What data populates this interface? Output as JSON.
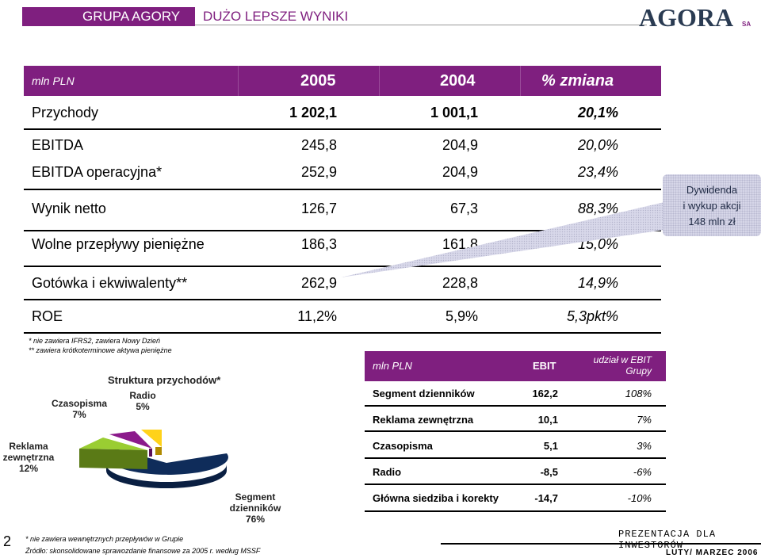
{
  "header": {
    "group": "GRUPA AGORY",
    "subtitle": "DUŻO LEPSZE WYNIKI",
    "logo_text": "AGORA",
    "logo_suffix": "SA"
  },
  "main_table": {
    "unit": "mln PLN",
    "col_2005": "2005",
    "col_2004": "2004",
    "col_change": "% zmiana",
    "rows": [
      {
        "label": "Przychody",
        "v2005": "1 202,1",
        "v2004": "1 001,1",
        "change": "20,1%",
        "bold": true
      },
      {
        "label": "EBITDA",
        "v2005": "245,8",
        "v2004": "204,9",
        "change": "20,0%"
      },
      {
        "label": "EBITDA operacyjna*",
        "v2005": "252,9",
        "v2004": "204,9",
        "change": "23,4%"
      },
      {
        "label": "Wynik netto",
        "v2005": "126,7",
        "v2004": "67,3",
        "change": "88,3%"
      },
      {
        "label": "Wolne przepływy pieniężne",
        "v2005": "186,3",
        "v2004": "161,8",
        "change": "15,0%"
      },
      {
        "label": "Gotówka i ekwiwalenty**",
        "v2005": "262,9",
        "v2004": "228,8",
        "change": "14,9%"
      },
      {
        "label": "ROE",
        "v2005": "11,2%",
        "v2004": "5,9%",
        "change": "5,3pkt%"
      }
    ]
  },
  "callout": {
    "line1": "Dywidenda",
    "line2": "i wykup akcji",
    "line3": "148 mln zł"
  },
  "footnotes_top": {
    "f1": "* nie zawiera IFRS2, zawiera Nowy Dzień",
    "f2": "** zawiera krótkoterminowe aktywa pieniężne"
  },
  "pie": {
    "title": "Struktura przychodów*",
    "segments": [
      {
        "label": "Segment dzienników",
        "value": "76%",
        "color": "#0f2c5a"
      },
      {
        "label": "Reklama zewnętrzna",
        "value": "12%",
        "color": "#9acd32"
      },
      {
        "label": "Czasopisma",
        "value": "7%",
        "color": "#8b1a8b"
      },
      {
        "label": "Radio",
        "value": "5%",
        "color": "#ffd21a"
      }
    ]
  },
  "ebit_table": {
    "unit": "mln PLN",
    "col_ebit": "EBIT",
    "col_share_line1": "udział w EBIT",
    "col_share_line2": "Grupy",
    "rows": [
      {
        "label": "Segment dzienników",
        "ebit": "162,2",
        "share": "108%"
      },
      {
        "label": "Reklama zewnętrzna",
        "ebit": "10,1",
        "share": "7%"
      },
      {
        "label": "Czasopisma",
        "ebit": "5,1",
        "share": "3%"
      },
      {
        "label": "Radio",
        "ebit": "-8,5",
        "share": "-6%"
      },
      {
        "label": "Główna siedziba i korekty",
        "ebit": "-14,7",
        "share": "-10%"
      }
    ]
  },
  "footnotes_bottom": {
    "f1": "* nie zawiera wewnętrznych przepływów w Grupie",
    "f2": "Źródło: skonsolidowane sprawozdanie finansowe za 2005 r. według MSSF"
  },
  "footer": {
    "page": "2",
    "presentation": "PREZENTACJA DLA INWESTORÓW",
    "date": "LUTY/ MARZEC 2006"
  }
}
